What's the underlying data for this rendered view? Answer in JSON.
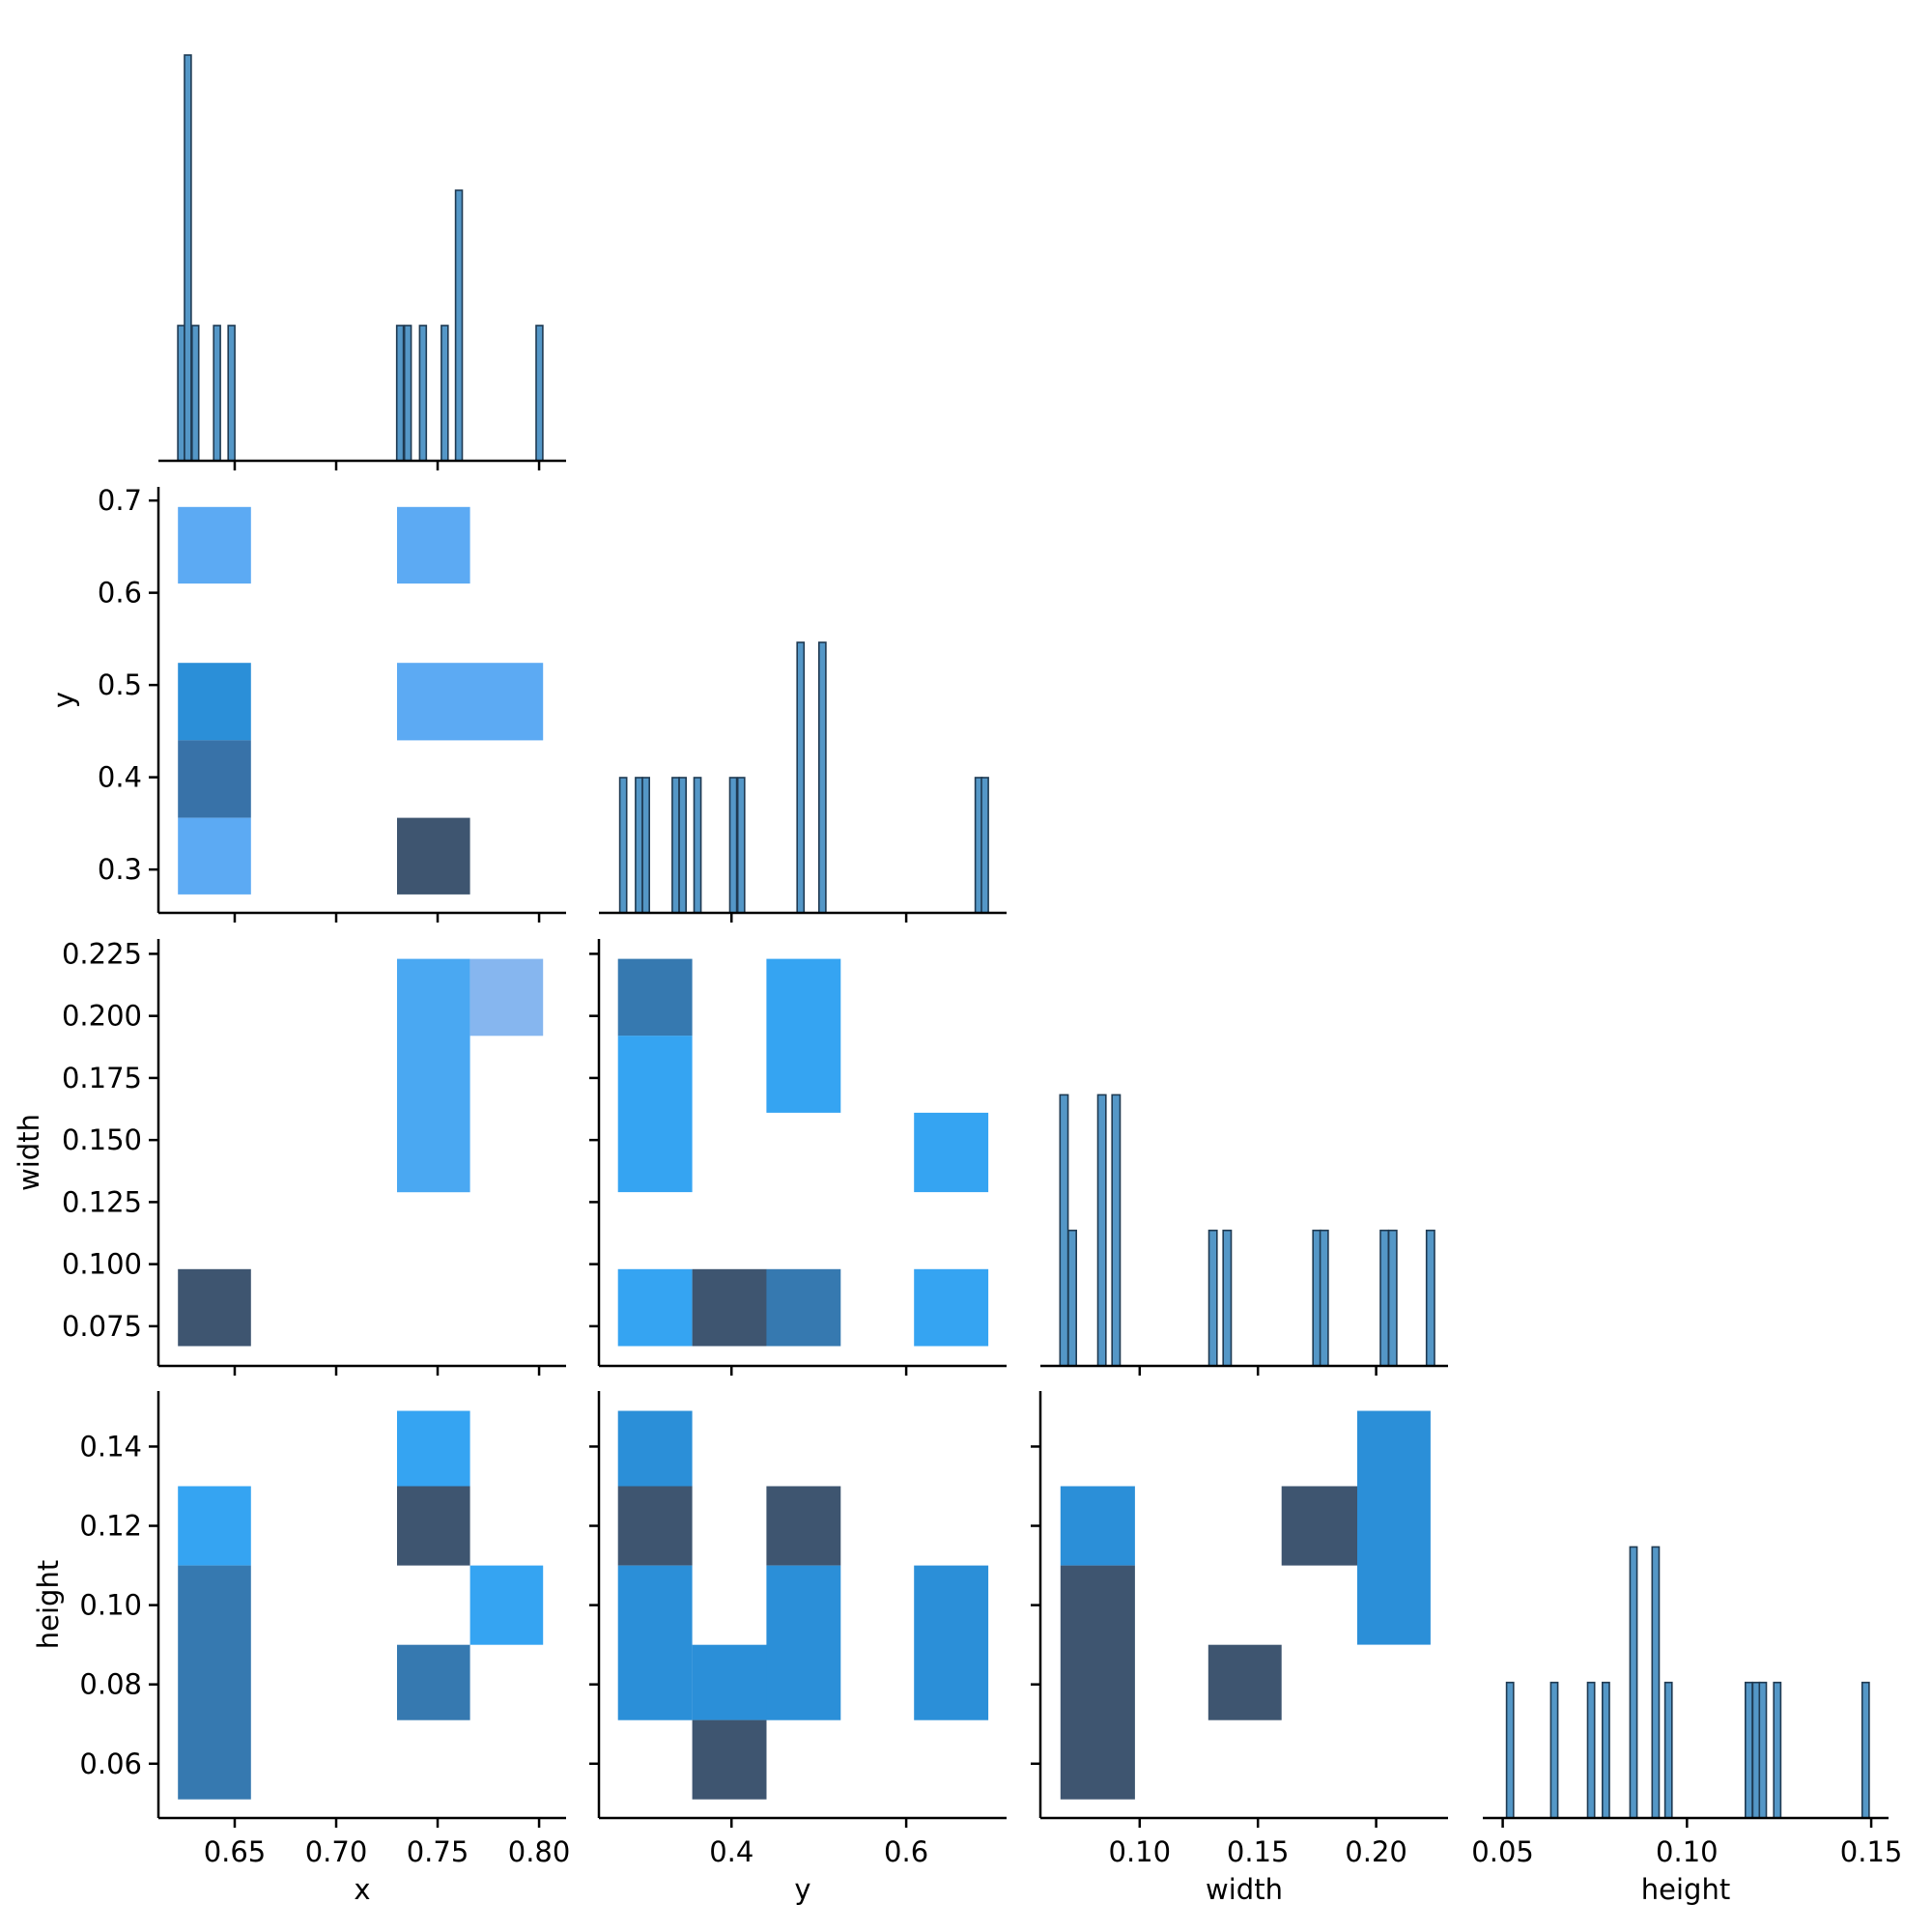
{
  "chart_data": {
    "type": "pairplot",
    "description": "Corner pair plot: diagonal histograms and lower-triangle 2D histograms (heatmaps)",
    "variables": [
      "x",
      "y",
      "width",
      "height"
    ],
    "axis_labels": {
      "x": "x",
      "y": "y",
      "width": "width",
      "height": "height"
    },
    "ranges": {
      "x": [
        0.6124,
        0.8133
      ],
      "y": [
        0.2482,
        0.7149
      ],
      "width": [
        0.058,
        0.2304
      ],
      "height": [
        0.0446,
        0.1547
      ]
    },
    "row_ranges": {
      "y": [
        0.253,
        0.7148
      ],
      "width": [
        0.059,
        0.231
      ],
      "height": [
        0.0463,
        0.154
      ]
    },
    "ticks": {
      "x": {
        "values": [
          0.65,
          0.7,
          0.75,
          0.8
        ],
        "labels": [
          "0.65",
          "0.70",
          "0.75",
          "0.80"
        ]
      },
      "y_col": {
        "values": [
          0.4,
          0.6
        ],
        "labels": [
          "0.4",
          "0.6"
        ]
      },
      "width_col": {
        "values": [
          0.1,
          0.15,
          0.2
        ],
        "labels": [
          "0.10",
          "0.15",
          "0.20"
        ]
      },
      "height_col": {
        "values": [
          0.05,
          0.1,
          0.15
        ],
        "labels": [
          "0.05",
          "0.10",
          "0.15"
        ]
      },
      "y_row": {
        "values": [
          0.3,
          0.4,
          0.5,
          0.6,
          0.7
        ],
        "labels": [
          "0.3",
          "0.4",
          "0.5",
          "0.6",
          "0.7"
        ]
      },
      "width_row": {
        "values": [
          0.075,
          0.1,
          0.125,
          0.15,
          0.175,
          0.2,
          0.225
        ],
        "labels": [
          "0.075",
          "0.100",
          "0.125",
          "0.150",
          "0.175",
          "0.200",
          "0.225"
        ]
      },
      "height_row": {
        "values": [
          0.06,
          0.08,
          0.1,
          0.12,
          0.14
        ],
        "labels": [
          "0.06",
          "0.08",
          "0.10",
          "0.12",
          "0.14"
        ]
      }
    },
    "histogram_count_ylim": [
      0,
      3.15
    ],
    "histograms": {
      "x": {
        "bin_width": 0.0033,
        "bins": [
          {
            "center": 0.6236,
            "count": 1
          },
          {
            "center": 0.6269,
            "count": 3
          },
          {
            "center": 0.6306,
            "count": 1
          },
          {
            "center": 0.6413,
            "count": 1
          },
          {
            "center": 0.6484,
            "count": 1
          },
          {
            "center": 0.7315,
            "count": 1
          },
          {
            "center": 0.7353,
            "count": 1
          },
          {
            "center": 0.7428,
            "count": 1
          },
          {
            "center": 0.7535,
            "count": 1
          },
          {
            "center": 0.7605,
            "count": 2
          },
          {
            "center": 0.8002,
            "count": 1
          }
        ]
      },
      "y": {
        "bin_width": 0.0078,
        "bins": [
          {
            "center": 0.276,
            "count": 1
          },
          {
            "center": 0.294,
            "count": 1
          },
          {
            "center": 0.302,
            "count": 1
          },
          {
            "center": 0.336,
            "count": 1
          },
          {
            "center": 0.344,
            "count": 1
          },
          {
            "center": 0.361,
            "count": 1
          },
          {
            "center": 0.402,
            "count": 1
          },
          {
            "center": 0.411,
            "count": 1
          },
          {
            "center": 0.479,
            "count": 2
          },
          {
            "center": 0.504,
            "count": 2
          },
          {
            "center": 0.683,
            "count": 1
          },
          {
            "center": 0.69,
            "count": 1
          }
        ]
      },
      "width": {
        "bin_width": 0.0034,
        "bins": [
          {
            "center": 0.068,
            "count": 2
          },
          {
            "center": 0.0715,
            "count": 1
          },
          {
            "center": 0.084,
            "count": 2
          },
          {
            "center": 0.09,
            "count": 2
          },
          {
            "center": 0.131,
            "count": 1
          },
          {
            "center": 0.137,
            "count": 1
          },
          {
            "center": 0.175,
            "count": 1
          },
          {
            "center": 0.178,
            "count": 1
          },
          {
            "center": 0.2035,
            "count": 1
          },
          {
            "center": 0.207,
            "count": 1
          },
          {
            "center": 0.223,
            "count": 1
          }
        ]
      },
      "height": {
        "bin_width": 0.0019,
        "bins": [
          {
            "center": 0.052,
            "count": 1
          },
          {
            "center": 0.064,
            "count": 1
          },
          {
            "center": 0.074,
            "count": 1
          },
          {
            "center": 0.078,
            "count": 1
          },
          {
            "center": 0.0855,
            "count": 2
          },
          {
            "center": 0.0915,
            "count": 2
          },
          {
            "center": 0.095,
            "count": 1
          },
          {
            "center": 0.1168,
            "count": 1
          },
          {
            "center": 0.1188,
            "count": 1
          },
          {
            "center": 0.1206,
            "count": 1
          },
          {
            "center": 0.1245,
            "count": 1
          },
          {
            "center": 0.1485,
            "count": 1
          }
        ]
      }
    },
    "heatmaps": [
      {
        "xvar": "x",
        "yvar": "y",
        "cells": [
          {
            "x0": 0.622,
            "x1": 0.658,
            "y0": 0.61,
            "y1": 0.693,
            "color": "#5caaf3"
          },
          {
            "x0": 0.73,
            "x1": 0.766,
            "y0": 0.61,
            "y1": 0.693,
            "color": "#5caaf3"
          },
          {
            "x0": 0.622,
            "x1": 0.658,
            "y0": 0.44,
            "y1": 0.524,
            "color": "#2b8fd8"
          },
          {
            "x0": 0.73,
            "x1": 0.802,
            "y0": 0.44,
            "y1": 0.524,
            "color": "#5caaf3"
          },
          {
            "x0": 0.622,
            "x1": 0.658,
            "y0": 0.356,
            "y1": 0.44,
            "color": "#3872a8"
          },
          {
            "x0": 0.622,
            "x1": 0.658,
            "y0": 0.273,
            "y1": 0.356,
            "color": "#5caaf3"
          },
          {
            "x0": 0.73,
            "x1": 0.766,
            "y0": 0.273,
            "y1": 0.356,
            "color": "#3e5570"
          }
        ]
      },
      {
        "xvar": "x",
        "yvar": "width",
        "cells": [
          {
            "x0": 0.73,
            "x1": 0.766,
            "y0": 0.129,
            "y1": 0.223,
            "color": "#4aa8f2"
          },
          {
            "x0": 0.766,
            "x1": 0.802,
            "y0": 0.192,
            "y1": 0.223,
            "color": "#86b6ef"
          },
          {
            "x0": 0.622,
            "x1": 0.658,
            "y0": 0.067,
            "y1": 0.098,
            "color": "#3e5570"
          }
        ]
      },
      {
        "xvar": "x",
        "yvar": "height",
        "cells": [
          {
            "x0": 0.622,
            "x1": 0.658,
            "y0": 0.11,
            "y1": 0.13,
            "color": "#35a4f2"
          },
          {
            "x0": 0.622,
            "x1": 0.658,
            "y0": 0.051,
            "y1": 0.11,
            "color": "#3679b0"
          },
          {
            "x0": 0.73,
            "x1": 0.766,
            "y0": 0.13,
            "y1": 0.149,
            "color": "#35a4f2"
          },
          {
            "x0": 0.73,
            "x1": 0.766,
            "y0": 0.11,
            "y1": 0.13,
            "color": "#3e5570"
          },
          {
            "x0": 0.766,
            "x1": 0.802,
            "y0": 0.09,
            "y1": 0.11,
            "color": "#35a4f2"
          },
          {
            "x0": 0.73,
            "x1": 0.766,
            "y0": 0.071,
            "y1": 0.09,
            "color": "#3679b0"
          }
        ]
      },
      {
        "xvar": "y",
        "yvar": "width",
        "cells": [
          {
            "x0": 0.27,
            "x1": 0.355,
            "y0": 0.192,
            "y1": 0.223,
            "color": "#3679b0"
          },
          {
            "x0": 0.27,
            "x1": 0.355,
            "y0": 0.129,
            "y1": 0.192,
            "color": "#35a4f2"
          },
          {
            "x0": 0.44,
            "x1": 0.525,
            "y0": 0.161,
            "y1": 0.223,
            "color": "#35a4f2"
          },
          {
            "x0": 0.609,
            "x1": 0.694,
            "y0": 0.129,
            "y1": 0.161,
            "color": "#35a4f2"
          },
          {
            "x0": 0.27,
            "x1": 0.355,
            "y0": 0.067,
            "y1": 0.098,
            "color": "#35a4f2"
          },
          {
            "x0": 0.355,
            "x1": 0.44,
            "y0": 0.067,
            "y1": 0.098,
            "color": "#3e5570"
          },
          {
            "x0": 0.44,
            "x1": 0.525,
            "y0": 0.067,
            "y1": 0.098,
            "color": "#3679b0"
          },
          {
            "x0": 0.609,
            "x1": 0.694,
            "y0": 0.067,
            "y1": 0.098,
            "color": "#35a4f2"
          }
        ]
      },
      {
        "xvar": "y",
        "yvar": "height",
        "cells": [
          {
            "x0": 0.27,
            "x1": 0.355,
            "y0": 0.13,
            "y1": 0.149,
            "color": "#2b8fd8"
          },
          {
            "x0": 0.27,
            "x1": 0.355,
            "y0": 0.11,
            "y1": 0.13,
            "color": "#3e5570"
          },
          {
            "x0": 0.44,
            "x1": 0.525,
            "y0": 0.11,
            "y1": 0.13,
            "color": "#3e5570"
          },
          {
            "x0": 0.27,
            "x1": 0.355,
            "y0": 0.071,
            "y1": 0.11,
            "color": "#2b8fd8"
          },
          {
            "x0": 0.355,
            "x1": 0.44,
            "y0": 0.071,
            "y1": 0.09,
            "color": "#2b8fd8"
          },
          {
            "x0": 0.44,
            "x1": 0.525,
            "y0": 0.071,
            "y1": 0.11,
            "color": "#2b8fd8"
          },
          {
            "x0": 0.609,
            "x1": 0.694,
            "y0": 0.071,
            "y1": 0.11,
            "color": "#2b8fd8"
          },
          {
            "x0": 0.355,
            "x1": 0.44,
            "y0": 0.051,
            "y1": 0.071,
            "color": "#3e5570"
          }
        ]
      },
      {
        "xvar": "width",
        "yvar": "height",
        "cells": [
          {
            "x0": 0.0665,
            "x1": 0.098,
            "y0": 0.11,
            "y1": 0.13,
            "color": "#2b8fd8"
          },
          {
            "x0": 0.0665,
            "x1": 0.098,
            "y0": 0.051,
            "y1": 0.11,
            "color": "#3e5570"
          },
          {
            "x0": 0.129,
            "x1": 0.16,
            "y0": 0.071,
            "y1": 0.09,
            "color": "#3e5570"
          },
          {
            "x0": 0.16,
            "x1": 0.192,
            "y0": 0.11,
            "y1": 0.13,
            "color": "#3e5570"
          },
          {
            "x0": 0.192,
            "x1": 0.223,
            "y0": 0.09,
            "y1": 0.149,
            "color": "#2b8fd8"
          }
        ]
      }
    ],
    "colors": {
      "hist_fill": "#5497c7",
      "hist_edge": "#1f3a52",
      "axis": "#000000"
    }
  }
}
